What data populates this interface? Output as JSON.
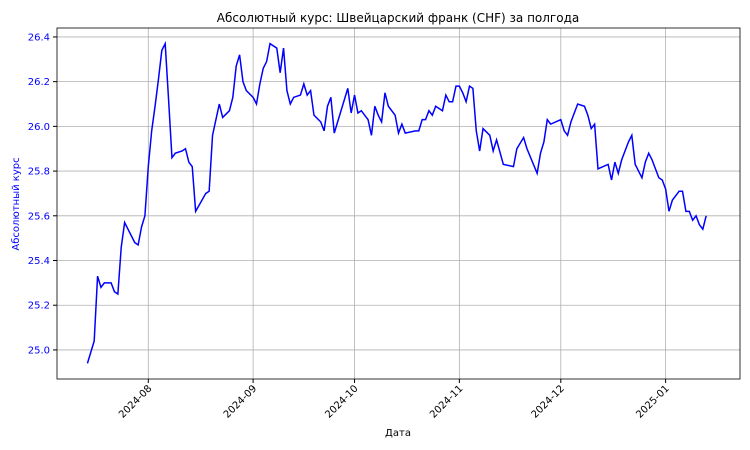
{
  "chart_data": {
    "type": "line",
    "title": "Абсолютный курс: Швейцарский франк (CHF) за полгода",
    "x_label": "Дата",
    "y_label": "Абсолютный курс",
    "x": [
      0,
      2,
      3,
      4,
      5,
      7,
      8,
      9,
      10,
      11,
      12,
      14,
      15,
      16,
      17,
      18,
      19,
      20,
      21,
      22,
      23,
      24,
      25,
      26,
      28,
      29,
      30,
      31,
      32,
      35,
      36,
      37,
      39,
      40,
      42,
      43,
      44,
      45,
      46,
      47,
      49,
      50,
      51,
      52,
      53,
      54,
      56,
      57,
      58,
      59,
      60,
      61,
      63,
      64,
      65,
      66,
      67,
      69,
      70,
      71,
      72,
      73,
      74,
      76,
      77,
      78,
      79,
      80,
      81,
      83,
      84,
      85,
      86,
      87,
      88,
      89,
      91,
      92,
      93,
      94,
      97,
      98,
      99,
      100,
      101,
      102,
      103,
      105,
      106,
      107,
      108,
      109,
      110,
      111,
      112,
      113,
      114,
      115,
      116,
      117,
      119,
      120,
      121,
      123,
      126,
      127,
      129,
      130,
      133,
      134,
      135,
      136,
      137,
      140,
      141,
      142,
      143,
      145,
      147,
      148,
      149,
      150,
      151,
      154,
      155,
      156,
      157,
      158,
      160,
      161,
      162,
      164,
      165,
      166,
      167,
      168,
      169,
      170,
      171,
      172,
      173,
      175,
      176,
      177,
      178,
      179,
      180,
      181,
      182,
      183
    ],
    "series": [
      {
        "name": "CHF",
        "color": "#0000ff",
        "values": [
          24.94,
          25.04,
          25.33,
          25.28,
          25.3,
          25.3,
          25.26,
          25.25,
          25.46,
          25.57,
          25.54,
          25.48,
          25.47,
          25.55,
          25.6,
          25.82,
          25.98,
          26.09,
          26.21,
          26.34,
          26.37,
          26.12,
          25.86,
          25.88,
          25.89,
          25.9,
          25.84,
          25.82,
          25.62,
          25.7,
          25.71,
          25.96,
          26.1,
          26.04,
          26.07,
          26.13,
          26.27,
          26.32,
          26.2,
          26.16,
          26.13,
          26.1,
          26.19,
          26.26,
          26.29,
          26.37,
          26.35,
          26.24,
          26.35,
          26.16,
          26.1,
          26.13,
          26.14,
          26.19,
          26.14,
          26.16,
          26.05,
          26.02,
          25.98,
          26.09,
          26.13,
          25.97,
          26.02,
          26.12,
          26.17,
          26.06,
          26.14,
          26.06,
          26.07,
          26.03,
          25.96,
          26.09,
          26.05,
          26.02,
          26.15,
          26.09,
          26.05,
          25.97,
          26.01,
          25.97,
          25.98,
          25.98,
          26.03,
          26.03,
          26.07,
          26.05,
          26.09,
          26.07,
          26.14,
          26.11,
          26.11,
          26.18,
          26.18,
          26.15,
          26.11,
          26.18,
          26.17,
          25.98,
          25.89,
          25.99,
          25.96,
          25.89,
          25.94,
          25.83,
          25.82,
          25.9,
          25.95,
          25.9,
          25.79,
          25.88,
          25.93,
          26.03,
          26.01,
          26.03,
          25.98,
          25.96,
          26.02,
          26.1,
          26.09,
          26.05,
          25.99,
          26.01,
          25.81,
          25.83,
          25.76,
          25.84,
          25.79,
          25.85,
          25.93,
          25.96,
          25.83,
          25.77,
          25.84,
          25.88,
          25.85,
          25.81,
          25.77,
          25.76,
          25.72,
          25.62,
          25.67,
          25.71,
          25.71,
          25.62,
          25.62,
          25.58,
          25.6,
          25.56,
          25.54,
          25.6
        ]
      }
    ],
    "xlim": [
      -9,
      193
    ],
    "xticks": [
      {
        "value": 18,
        "label": "2024-08"
      },
      {
        "value": 49,
        "label": "2024-09"
      },
      {
        "value": 79,
        "label": "2024-10"
      },
      {
        "value": 110,
        "label": "2024-11"
      },
      {
        "value": 140,
        "label": "2024-12"
      },
      {
        "value": 171,
        "label": "2025-01"
      }
    ],
    "ylim": [
      24.87,
      26.44
    ],
    "yticks": [
      {
        "value": 25,
        "label": "25.0"
      },
      {
        "value": 25.2,
        "label": "25.2"
      },
      {
        "value": 25.4,
        "label": "25.4"
      },
      {
        "value": 25.6,
        "label": "25.6"
      },
      {
        "value": 25.8,
        "label": "25.8"
      },
      {
        "value": 26,
        "label": "26.0"
      },
      {
        "value": 26.2,
        "label": "26.2"
      },
      {
        "value": 26.4,
        "label": "26.4"
      }
    ],
    "grid": true
  }
}
